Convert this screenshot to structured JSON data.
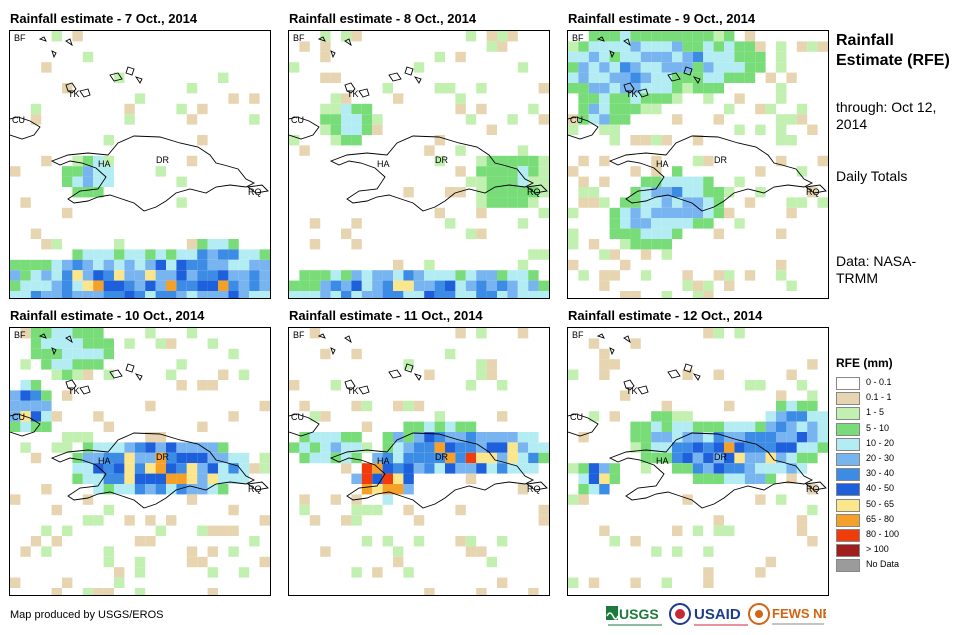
{
  "panels": [
    {
      "title": "Rainfall estimate - 7 Oct., 2014"
    },
    {
      "title": "Rainfall estimate - 8 Oct., 2014"
    },
    {
      "title": "Rainfall estimate - 9 Oct., 2014"
    },
    {
      "title": "Rainfall estimate - 10 Oct., 2014"
    },
    {
      "title": "Rainfall estimate - 11 Oct., 2014"
    },
    {
      "title": "Rainfall estimate - 12 Oct., 2014"
    }
  ],
  "map_labels": {
    "bf": "BF",
    "cu": "CU",
    "tk": "TK",
    "ha": "HA",
    "dr": "DR",
    "rq": "RQ"
  },
  "sidebar": {
    "title": "Rainfall Estimate (RFE)",
    "through": "through: Oct 12, 2014",
    "totals": "Daily Totals",
    "source": "Data: NASA-TRMM"
  },
  "legend": {
    "title": "RFE (mm)",
    "items": [
      {
        "label": "0 - 0.1",
        "color": "#ffffff"
      },
      {
        "label": "0.1 - 1",
        "color": "#e6d5b0"
      },
      {
        "label": "1 - 5",
        "color": "#c2f0b0"
      },
      {
        "label": "5 - 10",
        "color": "#78dc78"
      },
      {
        "label": "10 - 20",
        "color": "#b4ecf4"
      },
      {
        "label": "20 - 30",
        "color": "#78b4f0"
      },
      {
        "label": "30 - 40",
        "color": "#3c8ce6"
      },
      {
        "label": "40 - 50",
        "color": "#1e5fdc"
      },
      {
        "label": "50 - 65",
        "color": "#fbe68c"
      },
      {
        "label": "65 - 80",
        "color": "#f5a028"
      },
      {
        "label": "80 - 100",
        "color": "#f03c0a"
      },
      {
        "label": "> 100",
        "color": "#a01e1e"
      },
      {
        "label": "No Data",
        "color": "#9b9b9b"
      }
    ]
  },
  "credit": "Map produced by USGS/EROS",
  "logos": {
    "usgs": "USGS",
    "usaid": "USAID",
    "fewsnet": "FEWS NET"
  },
  "icons": {
    "usgs": "usgs-logo",
    "usaid": "usaid-seal",
    "fewsnet": "fewsnet-logo"
  }
}
